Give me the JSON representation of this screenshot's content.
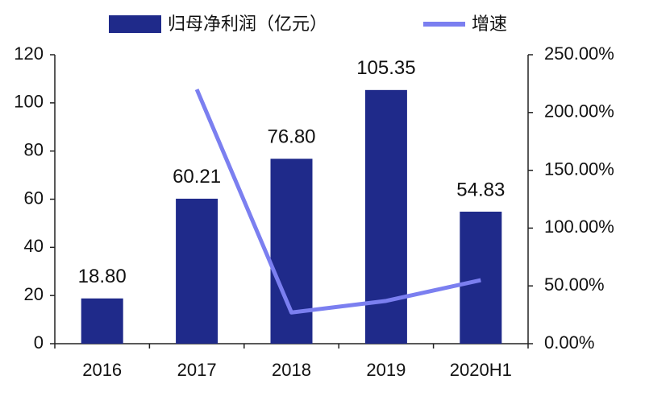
{
  "chart_data": {
    "type": "bar",
    "categories": [
      "2016",
      "2017",
      "2018",
      "2019",
      "2020H1"
    ],
    "series": [
      {
        "name": "归母净利润（亿元）",
        "type": "bar",
        "color": "#1f2a8a",
        "values": [
          18.8,
          60.21,
          76.8,
          105.35,
          54.83
        ],
        "value_labels": [
          "18.80",
          "60.21",
          "76.80",
          "105.35",
          "54.83"
        ]
      },
      {
        "name": "增速",
        "type": "line",
        "axis": "y2",
        "color": "#7b7ff0",
        "values": [
          null,
          220,
          27,
          37,
          55
        ]
      }
    ],
    "ylim": [
      0,
      120
    ],
    "yticks": [
      0,
      20,
      40,
      60,
      80,
      100,
      120
    ],
    "y2lim": [
      0,
      250
    ],
    "y2ticks": [
      {
        "value": 0,
        "label": "0.00%"
      },
      {
        "value": 50,
        "label": "50.00%"
      },
      {
        "value": 100,
        "label": "100.00%"
      },
      {
        "value": 150,
        "label": "150.00%"
      },
      {
        "value": 200,
        "label": "200.00%"
      },
      {
        "value": 250,
        "label": "250.00%"
      }
    ],
    "grid": false,
    "legend": "top"
  }
}
